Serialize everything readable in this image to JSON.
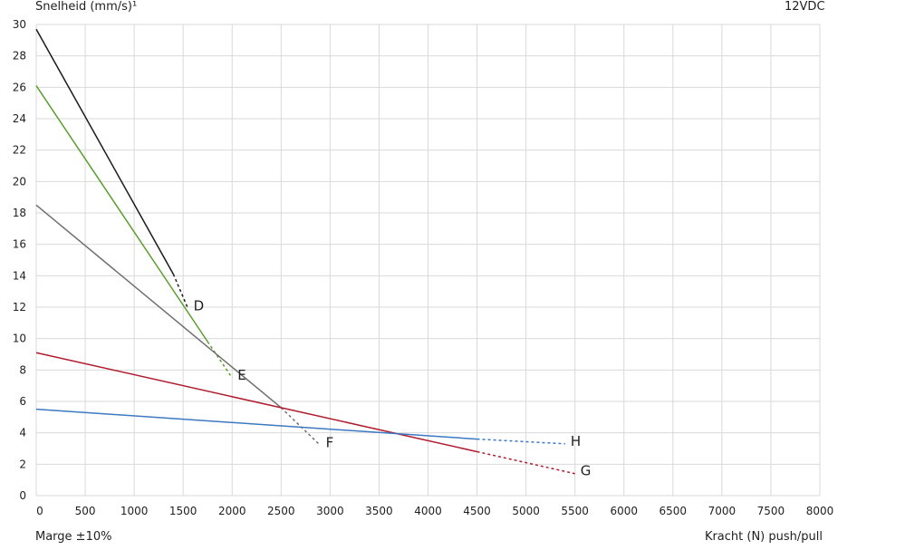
{
  "header": {
    "y_axis_label": "Snelheid (mm/s)¹",
    "voltage": "12VDC"
  },
  "footer": {
    "margin_note": "Marge ±10%",
    "x_axis_label": "Kracht (N) push/pull"
  },
  "chart_data": {
    "type": "line",
    "xlabel": "Kracht (N) push/pull",
    "ylabel": "Snelheid (mm/s)¹",
    "xlim": [
      0,
      8000
    ],
    "ylim": [
      0,
      30
    ],
    "x_ticks": [
      0,
      500,
      1000,
      1500,
      2000,
      2500,
      3000,
      3500,
      4000,
      4500,
      5000,
      5500,
      6000,
      6500,
      7000,
      7500,
      8000
    ],
    "y_ticks": [
      0,
      2,
      4,
      6,
      8,
      10,
      12,
      14,
      16,
      18,
      20,
      22,
      24,
      26,
      28,
      30
    ],
    "grid": true,
    "series": [
      {
        "name": "D",
        "color": "#1a1a1a",
        "solid": [
          [
            0,
            29.7
          ],
          [
            1400,
            14.1
          ]
        ],
        "dashed": [
          [
            1400,
            14.1
          ],
          [
            1550,
            11.9
          ]
        ]
      },
      {
        "name": "E",
        "color": "#5a9e2f",
        "solid": [
          [
            0,
            26.1
          ],
          [
            1750,
            9.8
          ]
        ],
        "dashed": [
          [
            1750,
            9.8
          ],
          [
            2000,
            7.5
          ]
        ]
      },
      {
        "name": "F",
        "color": "#6f6f6f",
        "solid": [
          [
            0,
            18.5
          ],
          [
            2500,
            5.6
          ]
        ],
        "dashed": [
          [
            2500,
            5.6
          ],
          [
            2900,
            3.2
          ]
        ]
      },
      {
        "name": "G",
        "color": "#b01c2e",
        "solid": [
          [
            0,
            9.1
          ],
          [
            4500,
            2.8
          ]
        ],
        "dashed": [
          [
            4500,
            2.8
          ],
          [
            5500,
            1.4
          ]
        ]
      },
      {
        "name": "H",
        "color": "#3d78c2",
        "solid": [
          [
            0,
            5.5
          ],
          [
            4500,
            3.6
          ]
        ],
        "dashed": [
          [
            4500,
            3.6
          ],
          [
            5400,
            3.3
          ]
        ]
      }
    ]
  }
}
